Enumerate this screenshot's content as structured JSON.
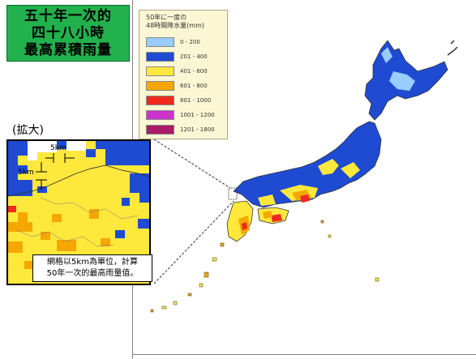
{
  "title": {
    "line1": "五十年一次的",
    "line2": "四十八小時",
    "line3": "最高累積雨量"
  },
  "legend": {
    "title_line1": "50年に一度の",
    "title_line2": "48時間降水量(mm)",
    "items": [
      {
        "label": "0 - 200",
        "color": "#99ccff"
      },
      {
        "label": "201 - 400",
        "color": "#1e4bd2"
      },
      {
        "label": "401 - 600",
        "color": "#ffe83c"
      },
      {
        "label": "601 - 800",
        "color": "#f5a700"
      },
      {
        "label": "801 - 1000",
        "color": "#ee2a1e"
      },
      {
        "label": "1001 - 1200",
        "color": "#cc33cc"
      },
      {
        "label": "1201 - 1800",
        "color": "#aa1a66"
      }
    ]
  },
  "zoom": {
    "label": "(拡大)",
    "scale_horizontal": "5km",
    "scale_vertical": "5km",
    "note_line1": "網格以5km為單位，計算",
    "note_line2": "50年一次的最高雨量值。"
  },
  "colors": {
    "title_bg": "#22b14c",
    "legend_bg": "#fbf7d4",
    "coastline": "#333333"
  }
}
